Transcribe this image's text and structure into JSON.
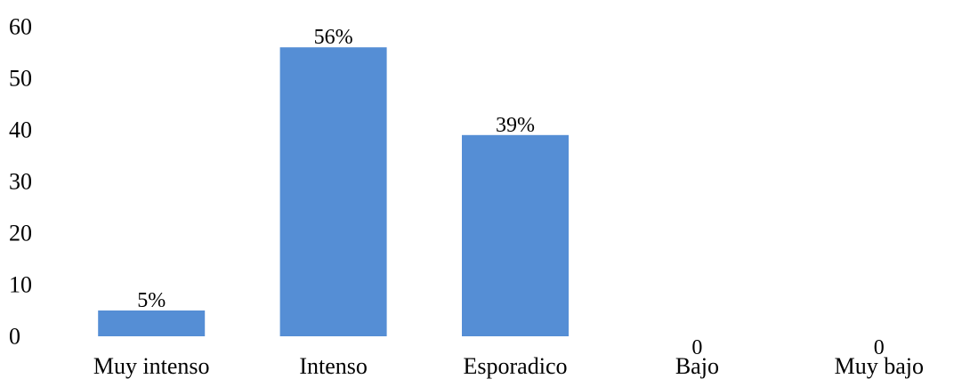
{
  "chart_data": {
    "type": "bar",
    "title": "",
    "xlabel": "",
    "ylabel": "",
    "categories": [
      "Muy intenso",
      "Intenso",
      "Esporadico",
      "Bajo",
      "Muy bajo"
    ],
    "values": [
      5,
      56,
      39,
      0,
      0
    ],
    "data_labels": [
      "5%",
      "56%",
      "39%",
      "0",
      "0"
    ],
    "ylim": [
      0,
      60
    ],
    "yticks": [
      0,
      10,
      20,
      30,
      40,
      50,
      60
    ],
    "bar_color": "#558ED5",
    "grid": false,
    "legend": "none"
  }
}
